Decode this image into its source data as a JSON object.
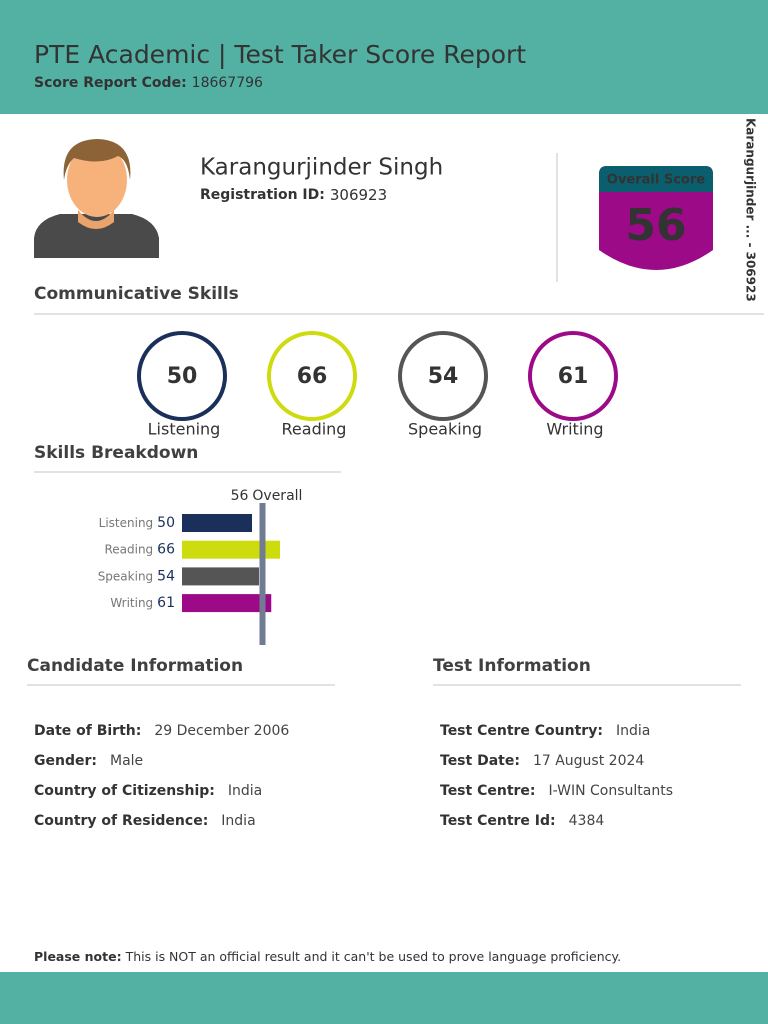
{
  "header": {
    "title": "PTE Academic | Test Taker Score Report",
    "code_label": "Score Report Code:",
    "code": "18667796"
  },
  "candidate": {
    "name": "Karangurjinder Singh",
    "reg_label": "Registration ID:",
    "reg_id": "306923"
  },
  "overall": {
    "label": "Overall Score",
    "score": 56
  },
  "side_label": "Karangurjinder ... - 306923",
  "communicative": {
    "title": "Communicative Skills",
    "skills": [
      {
        "name": "Listening",
        "score": 50,
        "color": "#1b2f5b"
      },
      {
        "name": "Reading",
        "score": 66,
        "color": "#cddc0f"
      },
      {
        "name": "Speaking",
        "score": 54,
        "color": "#555555"
      },
      {
        "name": "Writing",
        "score": 61,
        "color": "#9c0a87"
      }
    ]
  },
  "breakdown": {
    "title": "Skills Breakdown",
    "overall_label": "Overall",
    "xlim": [
      10,
      90
    ],
    "line_color": "#6f7c94"
  },
  "candidate_info": {
    "title": "Candidate Information",
    "rows": [
      {
        "label": "Date of Birth:",
        "value": "29 December 2006"
      },
      {
        "label": "Gender:",
        "value": "Male"
      },
      {
        "label": "Country of Citizenship:",
        "value": "India"
      },
      {
        "label": "Country of Residence:",
        "value": "India"
      }
    ]
  },
  "test_info": {
    "title": "Test Information",
    "rows": [
      {
        "label": "Test Centre Country:",
        "value": "India"
      },
      {
        "label": "Test Date:",
        "value": "17 August 2024"
      },
      {
        "label": "Test Centre:",
        "value": "I-WIN Consultants"
      },
      {
        "label": "Test Centre Id:",
        "value": "4384"
      }
    ]
  },
  "note": {
    "label": "Please note:",
    "text": "This is NOT an official result and it can't be used to prove language proficiency."
  }
}
